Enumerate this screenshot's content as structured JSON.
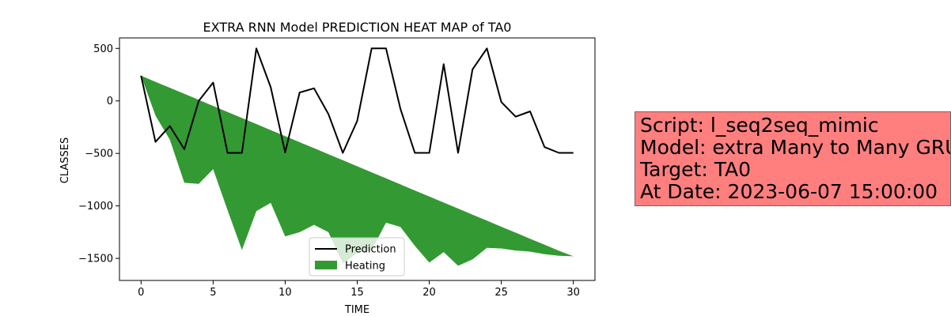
{
  "chart_data": {
    "type": "line",
    "title": "EXTRA RNN Model PREDICTION HEAT MAP of TA0",
    "xlabel": "TIME",
    "ylabel": "CLASSES",
    "xlim": [
      -1.5,
      31.5
    ],
    "ylim": [
      -1710,
      600
    ],
    "x_ticks": [
      0,
      5,
      10,
      15,
      20,
      25,
      30
    ],
    "y_ticks": [
      500,
      0,
      -500,
      -1000,
      -1500
    ],
    "y_tick_labels": [
      "500",
      "0",
      "−500",
      "−1000",
      "−1500"
    ],
    "x": [
      0,
      1,
      2,
      3,
      4,
      5,
      6,
      7,
      8,
      9,
      10,
      11,
      12,
      13,
      14,
      15,
      16,
      17,
      18,
      19,
      20,
      21,
      22,
      23,
      24,
      25,
      26,
      27,
      28,
      29,
      30
    ],
    "series": [
      {
        "name": "Prediction",
        "kind": "line",
        "color": "#000000",
        "values": [
          240,
          -390,
          -240,
          -460,
          0,
          175,
          -495,
          -495,
          500,
          130,
          -490,
          80,
          120,
          -125,
          -495,
          -190,
          500,
          500,
          -75,
          -495,
          -495,
          350,
          -495,
          300,
          500,
          -10,
          -150,
          -100,
          -440,
          -495,
          -495
        ]
      },
      {
        "name": "Heating",
        "kind": "area",
        "color": "#339933",
        "upper": [
          240,
          182,
          125,
          67,
          10,
          -48,
          -105,
          -163,
          -220,
          -278,
          -335,
          -393,
          -450,
          -508,
          -565,
          -623,
          -680,
          -738,
          -795,
          -853,
          -910,
          -968,
          -1025,
          -1083,
          -1140,
          -1198,
          -1255,
          -1313,
          -1370,
          -1428,
          -1480
        ],
        "lower": [
          240,
          -140,
          -370,
          -780,
          -790,
          -650,
          -1040,
          -1420,
          -1050,
          -970,
          -1290,
          -1250,
          -1180,
          -1250,
          -1550,
          -1450,
          -1420,
          -1160,
          -1200,
          -1380,
          -1540,
          -1440,
          -1570,
          -1510,
          -1400,
          -1405,
          -1425,
          -1435,
          -1460,
          -1475,
          -1480
        ]
      }
    ],
    "legend_position": "lower-center",
    "grid": false
  },
  "info_box": {
    "lines": [
      "Script: l_seq2seq_mimic",
      "Model: extra Many to Many GRU",
      "Target: TA0",
      "At Date: 2023-06-07 15:00:00"
    ],
    "background": "#ff7f7f"
  }
}
